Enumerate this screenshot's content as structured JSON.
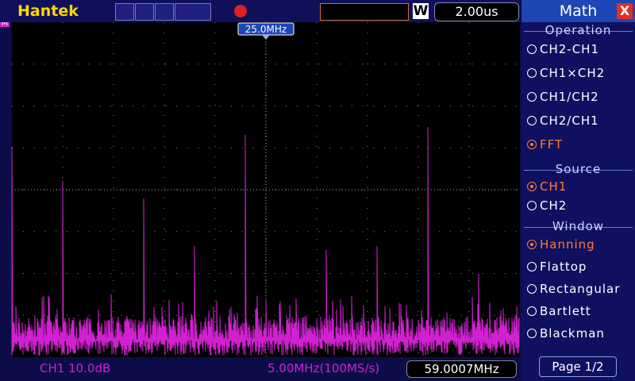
{
  "header": {
    "brand": "Hantek",
    "trigger_mode": "W",
    "timebase": "2.00us"
  },
  "screen": {
    "marker": "M",
    "cursor_label": "25.0MHz"
  },
  "menu": {
    "title": "Math",
    "close": "X",
    "sections": [
      {
        "title": "Operation",
        "options": [
          "CH2-CH1",
          "CH1×CH2",
          "CH1/CH2",
          "CH2/CH1",
          "FFT"
        ],
        "selected": 4
      },
      {
        "title": "Source",
        "options": [
          "CH1",
          "CH2"
        ],
        "selected": 0
      },
      {
        "title": "Window",
        "options": [
          "Hanning",
          "Flattop",
          "Rectangular",
          "Bartlett",
          "Blackman"
        ],
        "selected": 0
      }
    ],
    "page": "Page 1/2"
  },
  "status": {
    "channel_scale": "CH1 10.0dB",
    "span": "5.00MHz(100MS/s)",
    "frequency": "59.0007MHz"
  }
}
